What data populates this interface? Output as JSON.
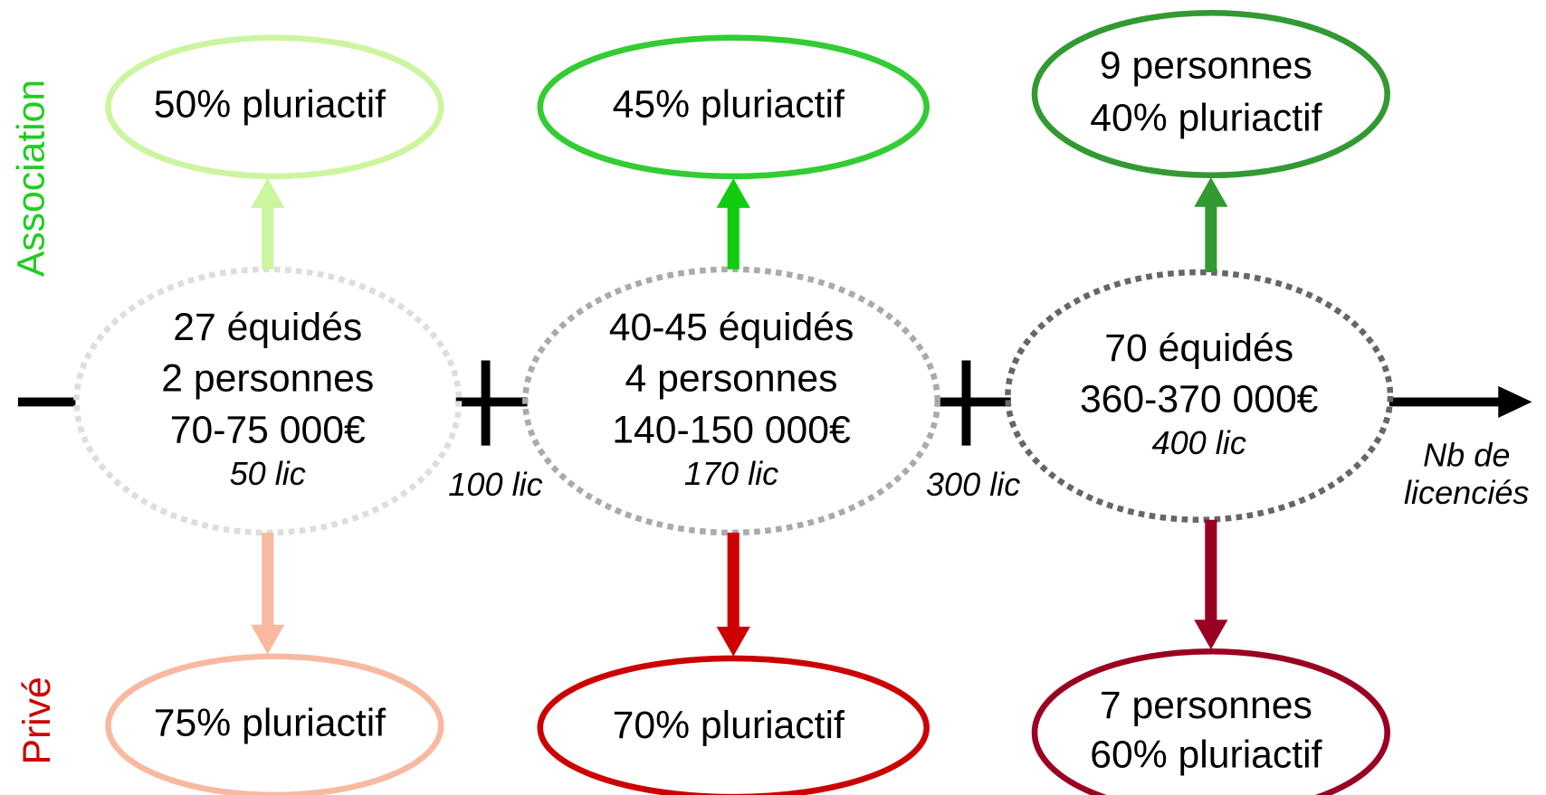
{
  "side_labels": {
    "top": "Association",
    "bottom": "Privé"
  },
  "columns": [
    {
      "center": [
        "27 équidés",
        "2 personnes",
        "70-75 000€"
      ],
      "lic": "50 lic",
      "top": [
        "50% pluriactif"
      ],
      "bottom": [
        "75% pluriactif"
      ]
    },
    {
      "center": [
        "40-45 équidés",
        "4 personnes",
        "140-150 000€"
      ],
      "lic": "170 lic",
      "top": [
        "45% pluriactif"
      ],
      "bottom": [
        "70% pluriactif"
      ]
    },
    {
      "center": [
        "70 équidés",
        "360-370 000€"
      ],
      "lic": "400 lic",
      "top": [
        "9 personnes",
        "40% pluriactif"
      ],
      "bottom": [
        "7 personnes",
        "60% pluriactif"
      ]
    }
  ],
  "thresholds": [
    "100 lic",
    "300 lic"
  ],
  "axis_label": [
    "Nb de",
    "licenciés"
  ]
}
